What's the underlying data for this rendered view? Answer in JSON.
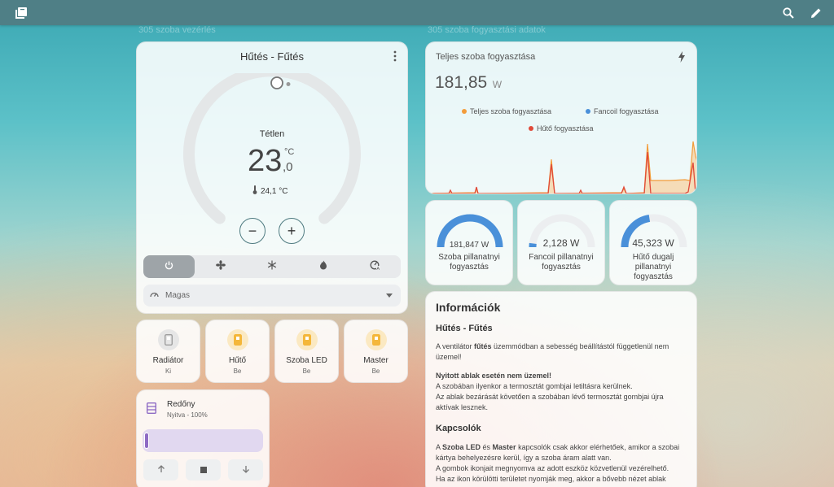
{
  "topbar": {
    "menu_icon": "book-icon",
    "search_icon": "search-icon",
    "edit_icon": "pencil-icon"
  },
  "sections": {
    "left": "305 szoba vezérlés",
    "right": "305 szoba fogyasztási adatok"
  },
  "thermostat": {
    "title": "Hűtés - Fűtés",
    "status": "Tétlen",
    "target_int": "23",
    "target_dec": ",0",
    "unit": "°C",
    "current": "24,1 °C",
    "minus": "−",
    "plus": "+",
    "modes": [
      "power-icon",
      "fan-icon",
      "snowflake-icon",
      "fire-icon",
      "auto-icon"
    ],
    "active_mode": 0,
    "fan_label": "Magas"
  },
  "tiles": [
    {
      "name": "Radiátor",
      "state": "Ki",
      "icon": "radiator-icon",
      "color": "#9e9e9e"
    },
    {
      "name": "Hűtő",
      "state": "Be",
      "icon": "fridge-icon",
      "color": "#f4b73a"
    },
    {
      "name": "Szoba LED",
      "state": "Be",
      "icon": "led-icon",
      "color": "#f4b73a"
    },
    {
      "name": "Master",
      "state": "Be",
      "icon": "master-icon",
      "color": "#f4b73a"
    }
  ],
  "shutter": {
    "name": "Redőny",
    "state": "Nyitva - 100%",
    "position": 100,
    "up_icon": "arrow-up-icon",
    "stop_icon": "stop-icon",
    "down_icon": "arrow-down-icon"
  },
  "consumption": {
    "title": "Teljes szoba fogyasztása",
    "value": "181,85",
    "unit": "W",
    "legend": [
      {
        "name": "Teljes szoba fogyasztása",
        "color": "#f39c3a"
      },
      {
        "name": "Fancoil fogyasztása",
        "color": "#4a90d9"
      },
      {
        "name": "Hűtő fogyasztása",
        "color": "#e04a3a"
      }
    ]
  },
  "gauges": [
    {
      "value": "181,847 W",
      "label": "Szoba pillanatnyi fogyasztás",
      "fraction": 1.0
    },
    {
      "value": "2,128 W",
      "label": "Fancoil pillanatnyi fogyasztás",
      "fraction": 0.04
    },
    {
      "value": "45,323 W",
      "label": "Hűtő dugalj pillanatnyi fogyasztás",
      "fraction": 0.45
    }
  ],
  "info": {
    "title": "Információk",
    "h1": "Hűtés - Fűtés",
    "p1a": "A ventilátor ",
    "p1b": "fűtés",
    "p1c": " üzemmódban a sebesség beállítástól függetlenül nem üzemel!",
    "p2title": "Nyitott ablak esetén nem üzemel!",
    "p2l1": "A szobában ilyenkor a termosztát gombjai letiltásra kerülnek.",
    "p2l2": "Az ablak bezárását követően a szobában lévő termosztát gombjai újra aktívak lesznek.",
    "h2": "Kapcsolók",
    "p3a": "A ",
    "p3b": "Szoba LED",
    "p3c": " és ",
    "p3d": "Master",
    "p3e": " kapcsolók csak akkor elérhetőek, amikor a szobai kártya behelyezésre kerül, így a szoba áram alatt van.",
    "p3l2": "A gombok ikonjait megnyomva az adott eszköz közvetlenül vezérelhető.",
    "p3l3": "Ha az ikon körülötti területet nyomják meg, akkor a bővebb nézet ablak"
  }
}
